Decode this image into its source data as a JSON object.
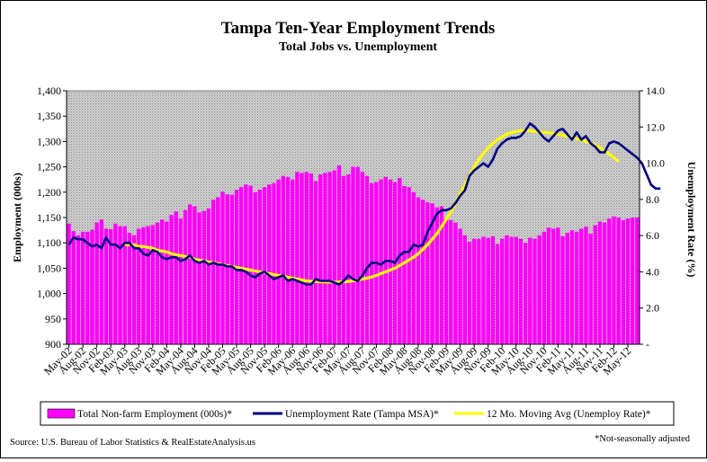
{
  "chart_data": {
    "type": "bar+line",
    "title": "Tampa Ten-Year Employment Trends",
    "subtitle": "Total Jobs vs. Unemployment",
    "ylabel_left": "Employment (000s)",
    "ylabel_right": "Unemployment Rate (%)",
    "ylim_left": [
      900,
      1400
    ],
    "ylim_right": [
      0,
      14
    ],
    "yticks_left": [
      "900",
      "950",
      "1,000",
      "1,050",
      "1,100",
      "1,150",
      "1,200",
      "1,250",
      "1,300",
      "1,350",
      "1,400"
    ],
    "yticks_right": [
      "-",
      "2.0",
      "4.0",
      "6.0",
      "8.0",
      "10.0",
      "12.0",
      "14.0"
    ],
    "x_tick_labels": [
      "May-02",
      "Aug-02",
      "Nov-02",
      "Feb-03",
      "May-03",
      "Aug-03",
      "Nov-03",
      "Feb-04",
      "May-04",
      "Aug-04",
      "Nov-04",
      "Feb-05",
      "May-05",
      "Aug-05",
      "Nov-05",
      "Feb-06",
      "May-06",
      "Aug-06",
      "Nov-06",
      "Feb-07",
      "May-07",
      "Aug-07",
      "Nov-07",
      "Feb-08",
      "May-08",
      "Aug-08",
      "Nov-08",
      "Feb-09",
      "May-09",
      "Aug-09",
      "Nov-09",
      "Feb-10",
      "May-10",
      "Aug-10",
      "Nov-10",
      "Feb-11",
      "May-11",
      "Aug-11",
      "Nov-11",
      "Feb-12",
      "May-12"
    ],
    "x_start": "May-02",
    "x_end": "May-12",
    "grid": false,
    "legend_position": "bottom",
    "colors": {
      "bars": "#ff00ff",
      "unemployment_line": "#000080",
      "moving_avg_line": "#ffff00",
      "plot_background": "#c8c8c8"
    },
    "series": [
      {
        "name": "Total Non-farm Employment (000s)*",
        "type": "bar",
        "axis": "left",
        "values": [
          1138,
          1123,
          1115,
          1122,
          1122,
          1126,
          1140,
          1146,
          1128,
          1127,
          1138,
          1133,
          1133,
          1120,
          1115,
          1128,
          1131,
          1133,
          1135,
          1140,
          1146,
          1142,
          1155,
          1162,
          1148,
          1165,
          1176,
          1172,
          1160,
          1163,
          1168,
          1185,
          1190,
          1201,
          1196,
          1195,
          1205,
          1210,
          1215,
          1213,
          1200,
          1205,
          1210,
          1215,
          1218,
          1225,
          1232,
          1230,
          1225,
          1240,
          1238,
          1240,
          1237,
          1222,
          1235,
          1238,
          1240,
          1243,
          1253,
          1232,
          1235,
          1250,
          1250,
          1240,
          1232,
          1218,
          1220,
          1225,
          1230,
          1225,
          1220,
          1228,
          1212,
          1210,
          1200,
          1190,
          1185,
          1180,
          1178,
          1170,
          1172,
          1148,
          1145,
          1140,
          1128,
          1115,
          1102,
          1108,
          1108,
          1112,
          1110,
          1113,
          1098,
          1108,
          1115,
          1112,
          1112,
          1108,
          1100,
          1110,
          1108,
          1115,
          1122,
          1130,
          1128,
          1130,
          1113,
          1120,
          1125,
          1122,
          1128,
          1132,
          1118,
          1135,
          1142,
          1140,
          1148,
          1152,
          1150,
          1145,
          1148,
          1150,
          1150
        ]
      },
      {
        "name": "Unemployment Rate (Tampa MSA)*",
        "type": "line",
        "axis": "right",
        "values": [
          5.5,
          5.9,
          5.8,
          5.8,
          5.6,
          5.4,
          5.5,
          5.3,
          5.9,
          5.5,
          5.5,
          5.3,
          5.6,
          5.6,
          5.3,
          5.3,
          5.0,
          4.9,
          5.2,
          5.1,
          4.8,
          4.7,
          4.8,
          4.8,
          4.6,
          4.7,
          4.9,
          4.6,
          4.5,
          4.6,
          4.4,
          4.5,
          4.4,
          4.4,
          4.3,
          4.3,
          4.1,
          4.1,
          4.0,
          3.8,
          3.7,
          3.9,
          4.0,
          3.8,
          3.6,
          3.7,
          3.8,
          3.5,
          3.6,
          3.5,
          3.4,
          3.3,
          3.3,
          3.6,
          3.5,
          3.5,
          3.5,
          3.4,
          3.3,
          3.5,
          3.8,
          3.6,
          3.5,
          3.8,
          4.2,
          4.5,
          4.5,
          4.4,
          4.6,
          4.6,
          4.5,
          4.9,
          5.1,
          5.1,
          5.5,
          5.4,
          5.5,
          6.2,
          6.7,
          7.2,
          7.4,
          7.4,
          7.5,
          7.8,
          8.2,
          8.5,
          9.3,
          9.6,
          9.8,
          10.0,
          9.8,
          10.2,
          10.8,
          11.1,
          11.3,
          11.4,
          11.4,
          11.5,
          11.8,
          12.2,
          12.0,
          11.7,
          11.4,
          11.2,
          11.5,
          11.8,
          11.9,
          11.6,
          11.3,
          11.7,
          11.3,
          11.5,
          11.1,
          10.9,
          10.6,
          10.6,
          11.1,
          11.2,
          11.1,
          10.9,
          10.7,
          10.5,
          10.3,
          10.0,
          9.4,
          8.8,
          8.6,
          8.6
        ]
      },
      {
        "name": "12 Mo. Moving Avg (Unemploy Rate)*",
        "type": "line",
        "axis": "right",
        "start_index": 12,
        "values": [
          5.5,
          5.5,
          5.5,
          5.4,
          5.4,
          5.35,
          5.3,
          5.2,
          5.15,
          5.1,
          5.0,
          4.95,
          4.9,
          4.85,
          4.8,
          4.7,
          4.65,
          4.6,
          4.55,
          4.5,
          4.45,
          4.4,
          4.35,
          4.3,
          4.25,
          4.2,
          4.15,
          4.1,
          4.05,
          4.0,
          3.95,
          3.9,
          3.85,
          3.8,
          3.75,
          3.7,
          3.65,
          3.6,
          3.55,
          3.5,
          3.48,
          3.46,
          3.45,
          3.44,
          3.43,
          3.43,
          3.44,
          3.45,
          3.47,
          3.5,
          3.55,
          3.6,
          3.65,
          3.72,
          3.8,
          3.9,
          4.0,
          4.1,
          4.2,
          4.35,
          4.5,
          4.65,
          4.8,
          5.0,
          5.25,
          5.5,
          5.8,
          6.1,
          6.5,
          6.9,
          7.3,
          7.8,
          8.3,
          8.8,
          9.3,
          9.8,
          10.2,
          10.55,
          10.85,
          11.1,
          11.3,
          11.45,
          11.6,
          11.7,
          11.75,
          11.8,
          11.8,
          11.8,
          11.75,
          11.72,
          11.7,
          11.68,
          11.65,
          11.6,
          11.55,
          11.5,
          11.45,
          11.35,
          11.3,
          11.2,
          11.1,
          11.0,
          10.85,
          10.7,
          10.5,
          10.3,
          10.1
        ]
      }
    ]
  },
  "source_text": "Source: U.S. Bureau of Labor Statistics & RealEstateAnalysis.us",
  "footnote_text": "*Not-seasonally adjusted"
}
